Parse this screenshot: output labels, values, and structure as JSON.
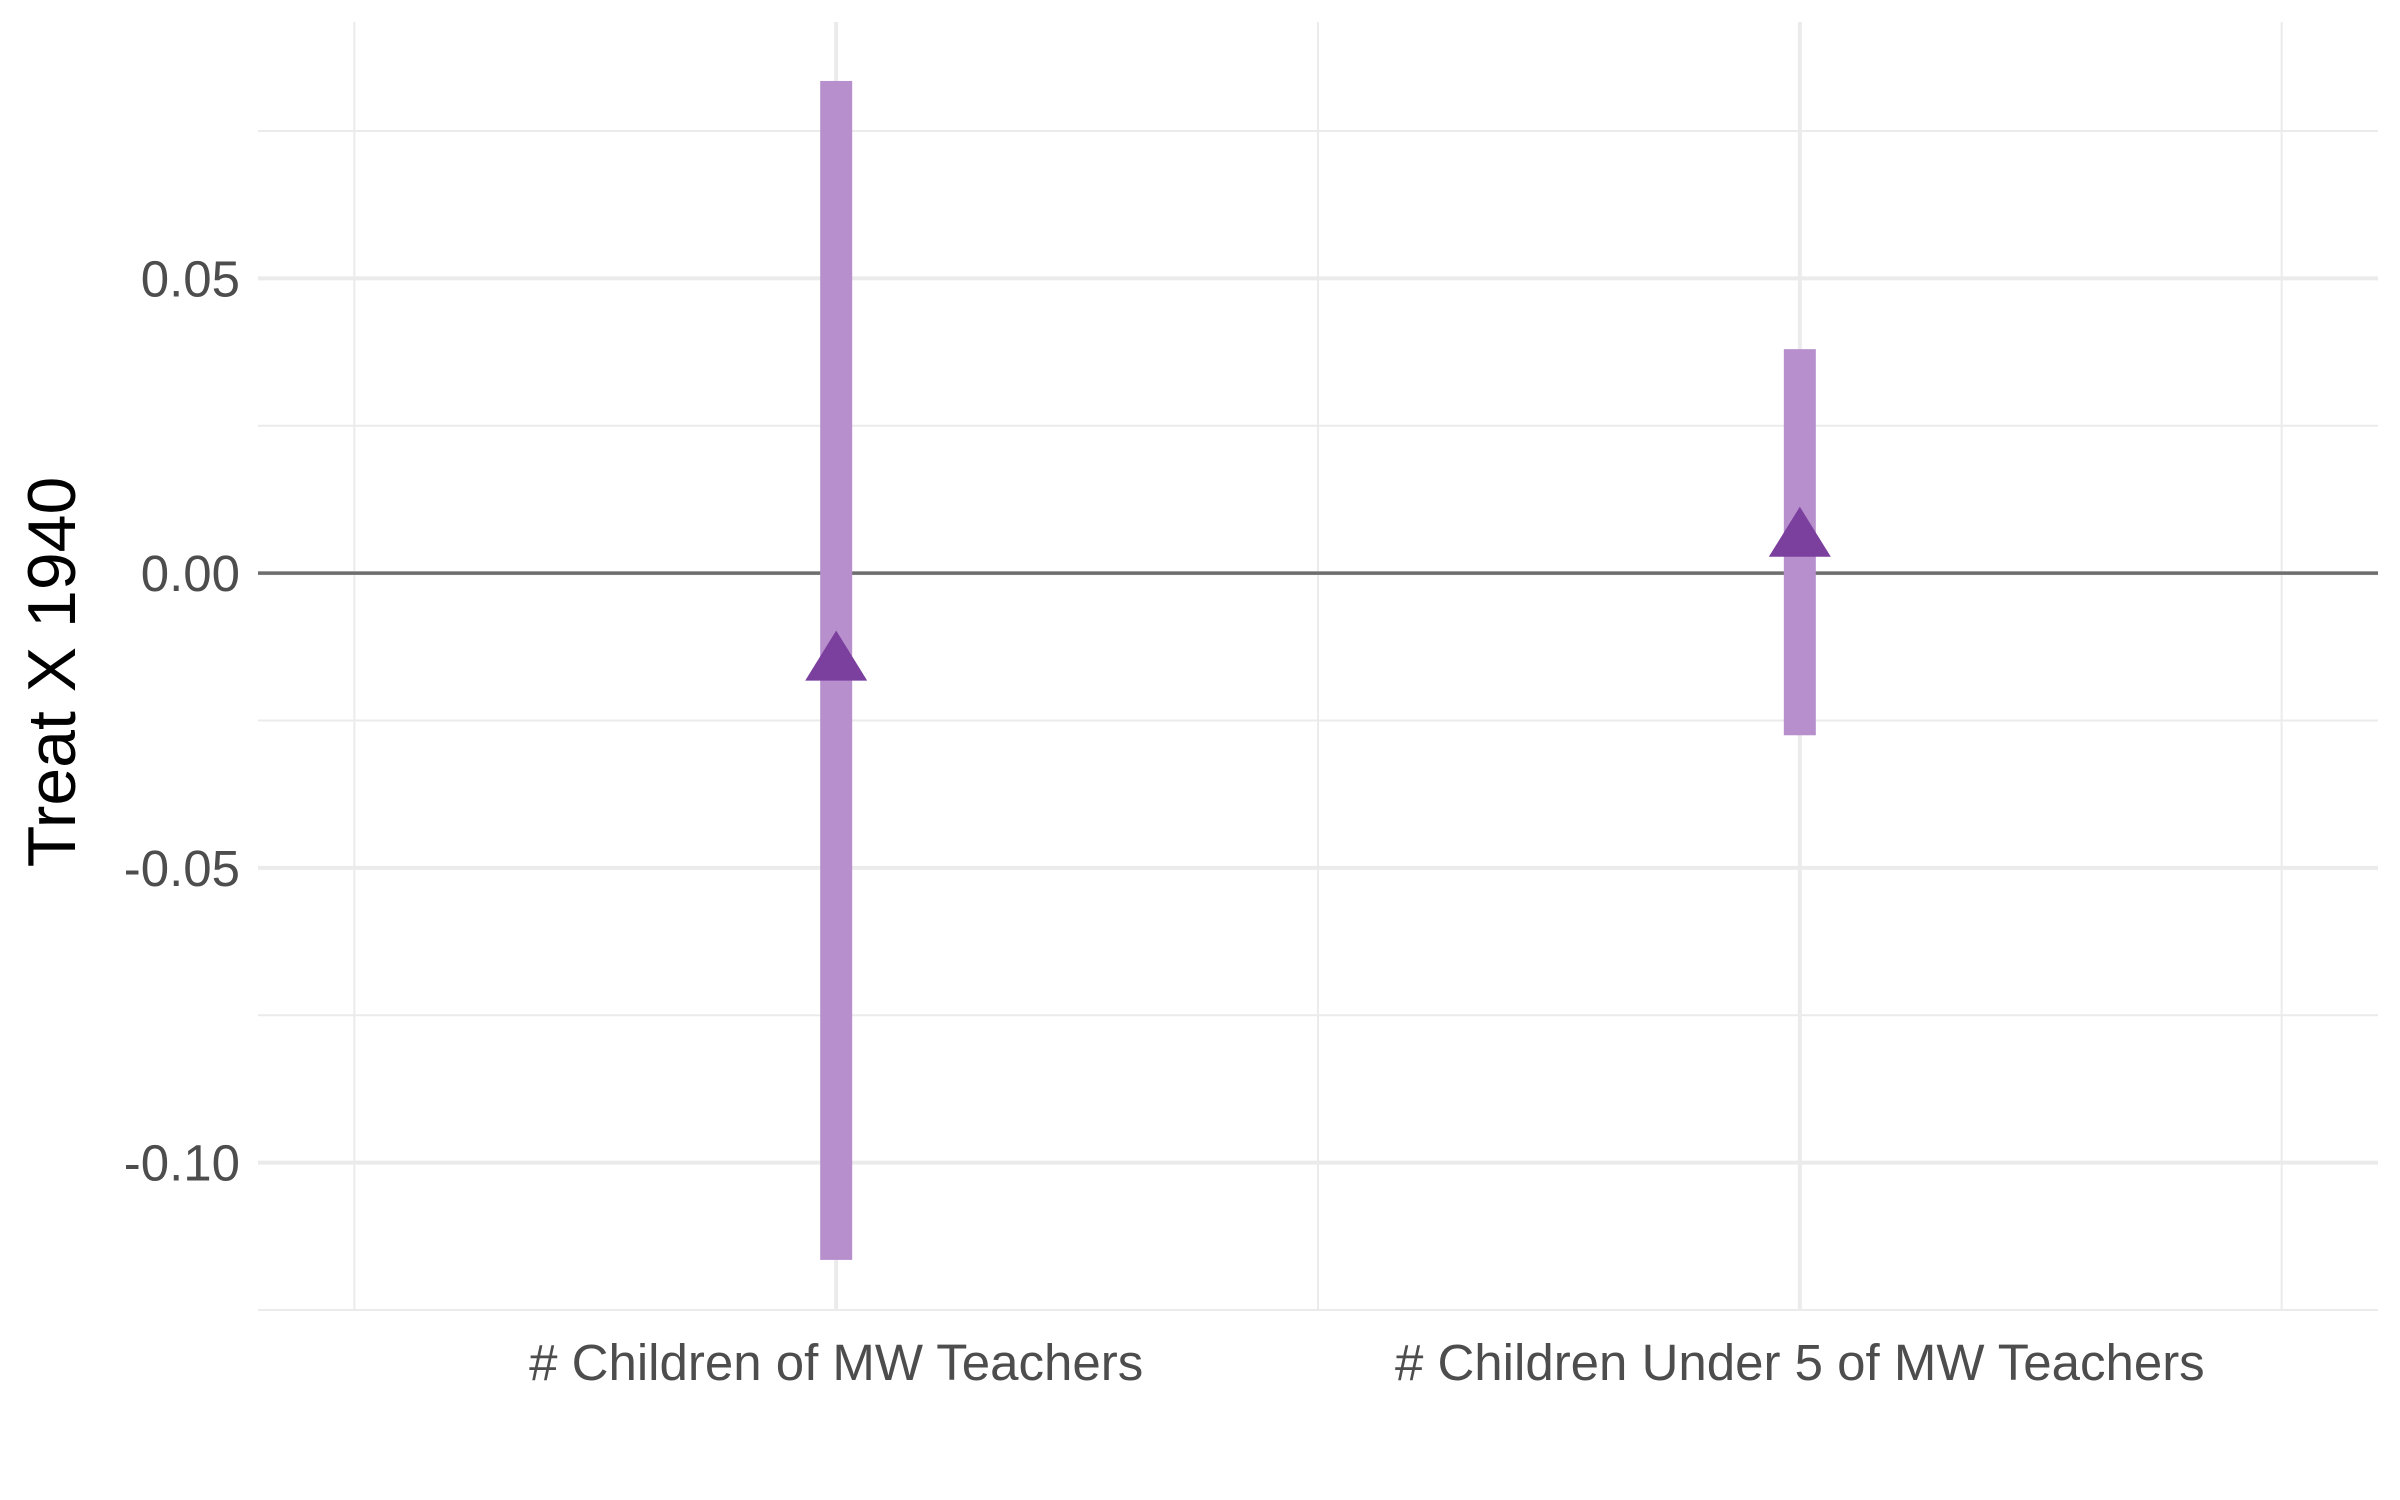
{
  "chart_data": {
    "type": "scatter",
    "title": "",
    "xlabel": "",
    "ylabel": "Treat X 1940",
    "categories": [
      "# Children of MW Teachers",
      "# Children Under 5 of MW Teachers"
    ],
    "series": [
      {
        "estimates": [
          -0.015,
          0.006
        ],
        "ci_low": [
          -0.1165,
          -0.0275
        ],
        "ci_high": [
          0.0835,
          0.038
        ]
      }
    ],
    "yticks": [
      0.05,
      0.0,
      -0.05,
      -0.1
    ],
    "ytick_labels": [
      "0.05",
      "0.00",
      "-0.05",
      "-0.10"
    ],
    "ylim": [
      -0.125,
      0.0935
    ],
    "reference_line": 0,
    "grid": true,
    "legend": "none",
    "colors": {
      "point": "#7b3f9e",
      "interval": "#b78fcd",
      "reference_line": "#6e6e6e",
      "grid": "#ebebeb"
    },
    "marker": "triangle-up"
  }
}
